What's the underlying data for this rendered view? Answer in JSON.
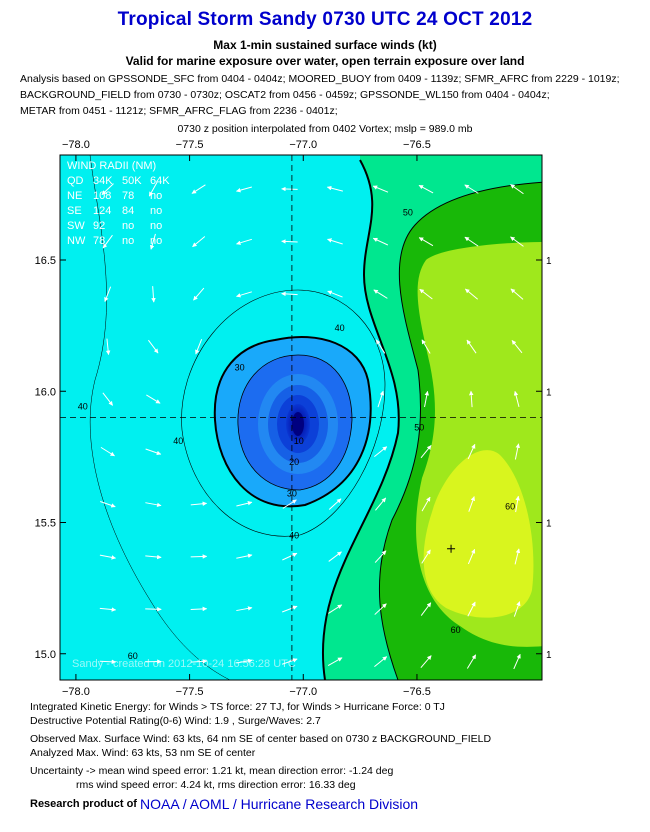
{
  "header": {
    "title": "Tropical Storm Sandy 0730 UTC 24 OCT 2012",
    "subtitle_1": "Max 1-min sustained surface winds (kt)",
    "subtitle_2": "Valid for marine exposure over water, open terrain exposure over land",
    "analysis_lines": [
      "Analysis based on GPSSONDE_SFC from 0404 - 0404z; MOORED_BUOY from 0409 - 1139z; SFMR_AFRC from 2229 - 1019z;",
      "BACKGROUND_FIELD from 0730 - 0730z; OSCAT2 from 0456 - 0459z; GPSSONDE_WL150 from 0404 - 0404z;",
      "METAR from 0451 - 1121z; SFMR_AFRC_FLAG from 2236 - 0401z;"
    ],
    "position_note": "0730 z position interpolated from 0402 Vortex; mslp = 989.0 mb"
  },
  "wind_radii": {
    "title": "WIND RADII (NM)",
    "header": [
      "QD",
      "34K",
      "50K",
      "64K"
    ],
    "rows": [
      [
        "NE",
        "108",
        "78",
        "no"
      ],
      [
        "SE",
        "124",
        "84",
        "no"
      ],
      [
        "SW",
        "92",
        "no",
        "no"
      ],
      [
        "NW",
        "78",
        "no",
        "no"
      ]
    ]
  },
  "watermark": "Sandy - created on 2012-10-24 16:56:28 UTC",
  "chart_data": {
    "type": "heatmap",
    "subtype": "filled wind-speed contour map",
    "units": "kt",
    "x_axis": {
      "range": [
        -78.07,
        -75.95
      ],
      "ticks": [
        -78.0,
        -77.5,
        -77.0,
        -76.5
      ],
      "tick_labels": [
        "−78.0",
        "−77.5",
        "−77.0",
        "−76.5"
      ]
    },
    "y_axis": {
      "range": [
        14.9,
        16.9
      ],
      "ticks": [
        15.0,
        15.5,
        16.0,
        16.5
      ],
      "tick_labels": [
        "15.0",
        "15.5",
        "16.0",
        "16.5"
      ]
    },
    "right_axis_labels": [
      "1",
      "1",
      "1",
      "1"
    ],
    "storm_center": {
      "lon": -77.05,
      "lat": 15.9
    },
    "max_wind_location": {
      "lon": -76.35,
      "lat": 15.4
    },
    "grid": "dashed crosshair through storm center",
    "contour_labels": [
      {
        "value": "10",
        "lon": -77.02,
        "lat": 15.8
      },
      {
        "value": "20",
        "lon": -77.04,
        "lat": 15.72
      },
      {
        "value": "30",
        "lon": -77.28,
        "lat": 16.08
      },
      {
        "value": "30",
        "lon": -77.05,
        "lat": 15.6
      },
      {
        "value": "40",
        "lon": -76.84,
        "lat": 16.23
      },
      {
        "value": "40",
        "lon": -77.55,
        "lat": 15.8
      },
      {
        "value": "40",
        "lon": -77.04,
        "lat": 15.44
      },
      {
        "value": "40",
        "lon": -77.97,
        "lat": 15.93
      },
      {
        "value": "50",
        "lon": -76.54,
        "lat": 16.67
      },
      {
        "value": "50",
        "lon": -76.49,
        "lat": 15.85
      },
      {
        "value": "60",
        "lon": -76.09,
        "lat": 15.55
      },
      {
        "value": "60",
        "lon": -76.33,
        "lat": 15.08
      },
      {
        "value": "60",
        "lon": -77.75,
        "lat": 14.98
      }
    ],
    "palette": {
      "0": "#000095",
      "10": "#0a36d2",
      "20": "#1c6cf0",
      "30": "#19a9fa",
      "40": "#00f0f0",
      "50": "#00e78f",
      "60": "#18b808",
      "70": "#9fe81c",
      "80": "#d9f51e"
    },
    "wind_vectors": [
      {
        "lon": -77.86,
        "lat": 16.77,
        "u": -0.72,
        "v": -0.69
      },
      {
        "lon": -77.66,
        "lat": 16.77,
        "u": -0.49,
        "v": -0.87
      },
      {
        "lon": -77.46,
        "lat": 16.77,
        "u": -0.84,
        "v": -0.54
      },
      {
        "lon": -77.26,
        "lat": 16.77,
        "u": -0.96,
        "v": -0.26
      },
      {
        "lon": -77.06,
        "lat": 16.77,
        "u": -1.0,
        "v": 0.03
      },
      {
        "lon": -76.86,
        "lat": 16.77,
        "u": -0.97,
        "v": 0.25
      },
      {
        "lon": -76.66,
        "lat": 16.77,
        "u": -0.93,
        "v": 0.38
      },
      {
        "lon": -76.46,
        "lat": 16.77,
        "u": -0.88,
        "v": 0.48
      },
      {
        "lon": -76.26,
        "lat": 16.77,
        "u": -0.85,
        "v": 0.53
      },
      {
        "lon": -76.06,
        "lat": 16.77,
        "u": -0.81,
        "v": 0.58
      },
      {
        "lon": -77.86,
        "lat": 16.57,
        "u": -0.59,
        "v": -0.81
      },
      {
        "lon": -77.66,
        "lat": 16.57,
        "u": -0.28,
        "v": -0.96
      },
      {
        "lon": -77.46,
        "lat": 16.57,
        "u": -0.77,
        "v": -0.64
      },
      {
        "lon": -77.26,
        "lat": 16.57,
        "u": -0.96,
        "v": -0.29
      },
      {
        "lon": -77.06,
        "lat": 16.57,
        "u": -1.0,
        "v": 0.04
      },
      {
        "lon": -76.86,
        "lat": 16.57,
        "u": -0.95,
        "v": 0.3
      },
      {
        "lon": -76.66,
        "lat": 16.57,
        "u": -0.91,
        "v": 0.42
      },
      {
        "lon": -76.46,
        "lat": 16.57,
        "u": -0.86,
        "v": 0.51
      },
      {
        "lon": -76.26,
        "lat": 16.57,
        "u": -0.83,
        "v": 0.56
      },
      {
        "lon": -76.06,
        "lat": 16.57,
        "u": -0.81,
        "v": 0.59
      },
      {
        "lon": -77.86,
        "lat": 16.37,
        "u": -0.36,
        "v": -0.93
      },
      {
        "lon": -77.66,
        "lat": 16.37,
        "u": 0.07,
        "v": -1.0
      },
      {
        "lon": -77.46,
        "lat": 16.37,
        "u": -0.65,
        "v": -0.76
      },
      {
        "lon": -77.26,
        "lat": 16.37,
        "u": -0.96,
        "v": -0.29
      },
      {
        "lon": -77.06,
        "lat": 16.37,
        "u": -1.0,
        "v": 0.06
      },
      {
        "lon": -76.86,
        "lat": 16.37,
        "u": -0.93,
        "v": 0.37
      },
      {
        "lon": -76.66,
        "lat": 16.37,
        "u": -0.85,
        "v": 0.53
      },
      {
        "lon": -76.46,
        "lat": 16.37,
        "u": -0.79,
        "v": 0.61
      },
      {
        "lon": -76.26,
        "lat": 16.37,
        "u": -0.77,
        "v": 0.64
      },
      {
        "lon": -76.06,
        "lat": 16.37,
        "u": -0.76,
        "v": 0.65
      },
      {
        "lon": -77.86,
        "lat": 16.17,
        "u": 0.1,
        "v": -1.0
      },
      {
        "lon": -77.66,
        "lat": 16.17,
        "u": 0.6,
        "v": -0.8
      },
      {
        "lon": -77.46,
        "lat": 16.17,
        "u": -0.37,
        "v": -0.93
      },
      {
        "lon": -76.66,
        "lat": 16.17,
        "u": -0.53,
        "v": 0.85
      },
      {
        "lon": -76.46,
        "lat": 16.17,
        "u": -0.51,
        "v": 0.86
      },
      {
        "lon": -76.26,
        "lat": 16.17,
        "u": -0.57,
        "v": 0.82
      },
      {
        "lon": -76.06,
        "lat": 16.17,
        "u": -0.62,
        "v": 0.78
      },
      {
        "lon": -77.86,
        "lat": 15.97,
        "u": 0.61,
        "v": -0.79
      },
      {
        "lon": -77.66,
        "lat": 15.97,
        "u": 0.86,
        "v": -0.52
      },
      {
        "lon": -76.66,
        "lat": 15.97,
        "u": 0.32,
        "v": 1.0
      },
      {
        "lon": -76.46,
        "lat": 15.97,
        "u": 0.19,
        "v": 0.98
      },
      {
        "lon": -76.26,
        "lat": 15.97,
        "u": -0.07,
        "v": 1.0
      },
      {
        "lon": -76.06,
        "lat": 15.97,
        "u": -0.25,
        "v": 0.97
      },
      {
        "lon": -77.86,
        "lat": 15.77,
        "u": 0.85,
        "v": -0.53
      },
      {
        "lon": -77.66,
        "lat": 15.77,
        "u": 0.95,
        "v": -0.33
      },
      {
        "lon": -76.66,
        "lat": 15.77,
        "u": 0.78,
        "v": 0.62
      },
      {
        "lon": -76.46,
        "lat": 15.77,
        "u": 0.63,
        "v": 0.77
      },
      {
        "lon": -76.26,
        "lat": 15.77,
        "u": 0.42,
        "v": 0.91
      },
      {
        "lon": -76.06,
        "lat": 15.77,
        "u": 0.2,
        "v": 0.98
      },
      {
        "lon": -77.86,
        "lat": 15.57,
        "u": 0.94,
        "v": -0.33
      },
      {
        "lon": -77.66,
        "lat": 15.57,
        "u": 0.98,
        "v": -0.18
      },
      {
        "lon": -77.46,
        "lat": 15.57,
        "u": 0.99,
        "v": 0.1
      },
      {
        "lon": -77.26,
        "lat": 15.57,
        "u": 0.97,
        "v": 0.24
      },
      {
        "lon": -77.06,
        "lat": 15.57,
        "u": 0.85,
        "v": 0.53
      },
      {
        "lon": -76.86,
        "lat": 15.57,
        "u": 0.74,
        "v": 0.67
      },
      {
        "lon": -76.66,
        "lat": 15.57,
        "u": 0.64,
        "v": 0.77
      },
      {
        "lon": -76.46,
        "lat": 15.57,
        "u": 0.5,
        "v": 0.87
      },
      {
        "lon": -76.26,
        "lat": 15.57,
        "u": 0.34,
        "v": 0.94
      },
      {
        "lon": -76.06,
        "lat": 15.57,
        "u": 0.17,
        "v": 0.99
      },
      {
        "lon": -77.86,
        "lat": 15.37,
        "u": 0.98,
        "v": -0.19
      },
      {
        "lon": -77.66,
        "lat": 15.37,
        "u": 0.99,
        "v": -0.1
      },
      {
        "lon": -77.46,
        "lat": 15.37,
        "u": 1.0,
        "v": 0.03
      },
      {
        "lon": -77.26,
        "lat": 15.37,
        "u": 0.98,
        "v": 0.2
      },
      {
        "lon": -77.06,
        "lat": 15.37,
        "u": 0.91,
        "v": 0.42
      },
      {
        "lon": -76.86,
        "lat": 15.37,
        "u": 0.8,
        "v": 0.6
      },
      {
        "lon": -76.66,
        "lat": 15.37,
        "u": 0.68,
        "v": 0.74
      },
      {
        "lon": -76.46,
        "lat": 15.37,
        "u": 0.54,
        "v": 0.84
      },
      {
        "lon": -76.26,
        "lat": 15.37,
        "u": 0.39,
        "v": 0.92
      },
      {
        "lon": -76.06,
        "lat": 15.37,
        "u": 0.24,
        "v": 0.97
      },
      {
        "lon": -77.86,
        "lat": 15.17,
        "u": 0.99,
        "v": -0.1
      },
      {
        "lon": -77.66,
        "lat": 15.17,
        "u": 1.0,
        "v": -0.03
      },
      {
        "lon": -77.46,
        "lat": 15.17,
        "u": 1.0,
        "v": 0.05
      },
      {
        "lon": -77.26,
        "lat": 15.17,
        "u": 0.98,
        "v": 0.18
      },
      {
        "lon": -77.06,
        "lat": 15.17,
        "u": 0.93,
        "v": 0.36
      },
      {
        "lon": -76.86,
        "lat": 15.17,
        "u": 0.84,
        "v": 0.54
      },
      {
        "lon": -76.66,
        "lat": 15.17,
        "u": 0.73,
        "v": 0.68
      },
      {
        "lon": -76.46,
        "lat": 15.17,
        "u": 0.6,
        "v": 0.8
      },
      {
        "lon": -76.26,
        "lat": 15.17,
        "u": 0.46,
        "v": 0.89
      },
      {
        "lon": -76.06,
        "lat": 15.17,
        "u": 0.33,
        "v": 0.94
      },
      {
        "lon": -77.86,
        "lat": 14.97,
        "u": 1.0,
        "v": -0.04
      },
      {
        "lon": -77.66,
        "lat": 14.97,
        "u": 1.0,
        "v": 0.01
      },
      {
        "lon": -77.46,
        "lat": 14.97,
        "u": 1.0,
        "v": 0.07
      },
      {
        "lon": -77.26,
        "lat": 14.97,
        "u": 0.99,
        "v": 0.17
      },
      {
        "lon": -77.06,
        "lat": 14.97,
        "u": 0.94,
        "v": 0.33
      },
      {
        "lon": -76.86,
        "lat": 14.97,
        "u": 0.87,
        "v": 0.49
      },
      {
        "lon": -76.66,
        "lat": 14.97,
        "u": 0.77,
        "v": 0.63
      },
      {
        "lon": -76.46,
        "lat": 14.97,
        "u": 0.65,
        "v": 0.76
      },
      {
        "lon": -76.26,
        "lat": 14.97,
        "u": 0.52,
        "v": 0.86
      },
      {
        "lon": -76.06,
        "lat": 14.97,
        "u": 0.4,
        "v": 0.92
      }
    ]
  },
  "footer": {
    "energy_line": "Integrated Kinetic Energy: for Winds > TS force: 27 TJ, for Winds > Hurricane Force: 0 TJ",
    "potential_line": "Destructive Potential Rating(0-6)  Wind: 1.9 , Surge/Waves: 2.7",
    "observed_line": "Observed Max. Surface Wind: 63 kts, 64 nm SE of center based on 0730 z BACKGROUND_FIELD",
    "analyzed_line": "Analyzed Max. Wind: 63 kts, 53 nm  SE of center",
    "uncertainty_line": "Uncertainty -> mean wind speed error: 1.21 kt, mean direction error:  -1.24 deg",
    "rms_line": "rms wind speed error: 4.24 kt, rms direction error: 16.33 deg",
    "research_label": "Research product of",
    "org_label": "NOAA  /  AOML  /  Hurricane Research Division"
  }
}
